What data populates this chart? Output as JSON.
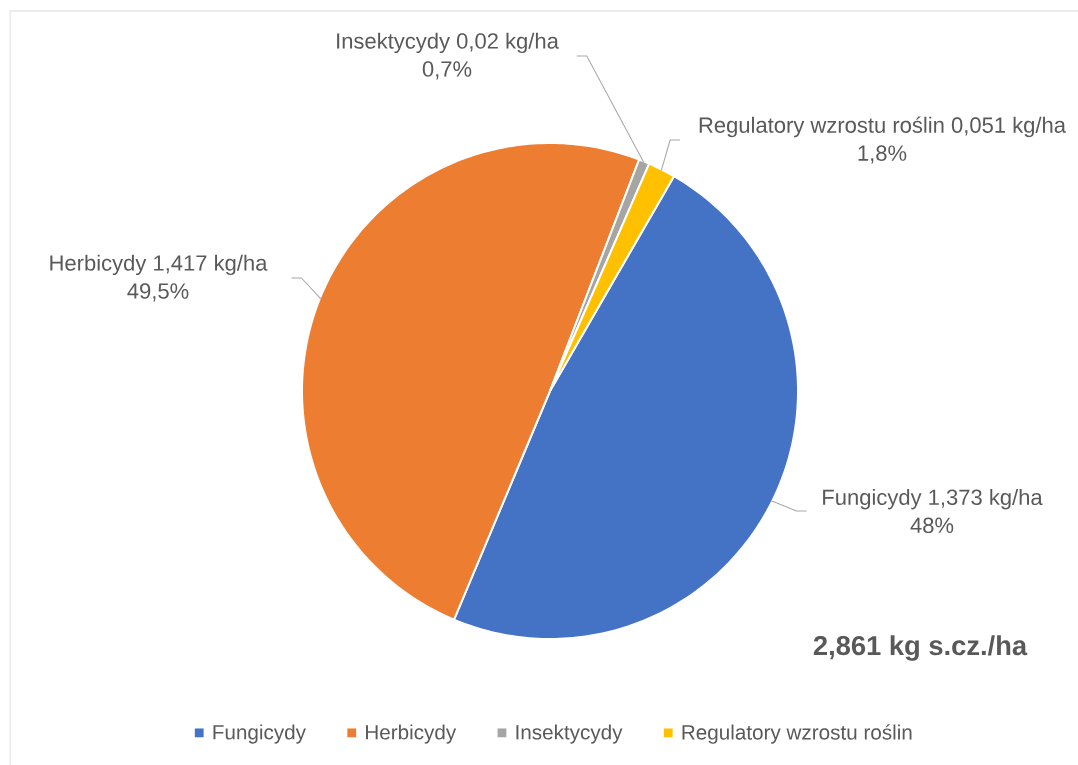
{
  "chart_data": {
    "type": "pie",
    "categories": [
      "Fungicydy",
      "Herbicydy",
      "Insektycydy",
      "Regulatory wzrostu roślin"
    ],
    "values": [
      1.373,
      1.417,
      0.02,
      0.051
    ],
    "colors": [
      "#4472c4",
      "#ed7d31",
      "#a5a5a5",
      "#ffc000"
    ],
    "value_labels": [
      "Fungicydy 1,373 kg/ha 48%",
      "Herbicydy 1,417 kg/ha 49,5%",
      "Insektycydy 0,02 kg/ha 0,7%",
      "Regulatory wzrostu roślin 0,051 kg/ha 1,8%"
    ],
    "annotations": [
      "2,861 kg s.cz./ha"
    ],
    "legend": "bottom"
  }
}
